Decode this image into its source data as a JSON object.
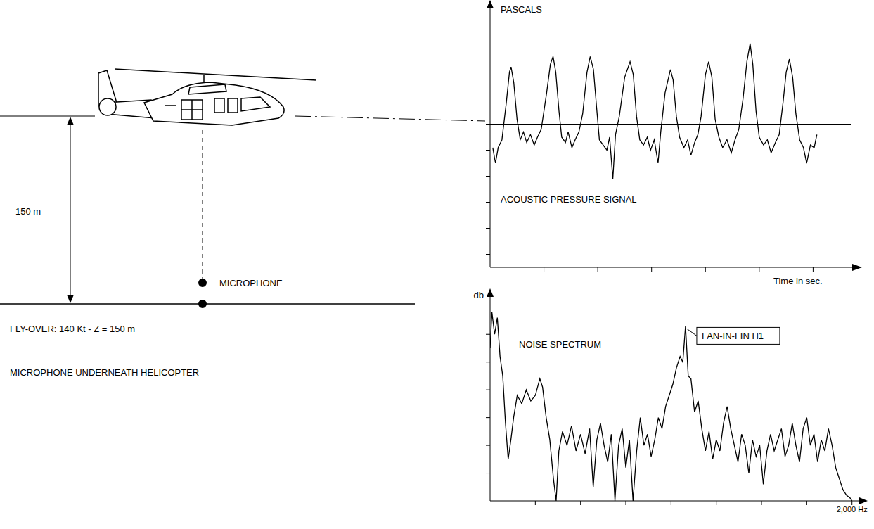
{
  "scene": {
    "altitude_label": "150 m",
    "microphone_label": "MICROPHONE",
    "caption_1": "FLY-OVER: 140 Kt - Z = 150 m",
    "caption_2": "MICROPHONE UNDERNEATH HELICOPTER"
  },
  "chart_data": [
    {
      "type": "line",
      "title": "ACOUSTIC PRESSURE SIGNAL",
      "y_label": "PASCALS",
      "x_label": "Time in sec.",
      "color": "#000000",
      "grid": false,
      "tick_labels": false,
      "xlim": [
        0,
        6.7
      ],
      "xticks": [
        1,
        2,
        3,
        4,
        5,
        6
      ],
      "ylim": [
        -5.5,
        4.5
      ],
      "yticks": [
        -5,
        -4,
        -3,
        -2,
        -1,
        0,
        1,
        2,
        3
      ],
      "x": [
        0.05,
        0.1,
        0.15,
        0.22,
        0.3,
        0.36,
        0.39,
        0.44,
        0.5,
        0.56,
        0.62,
        0.68,
        0.75,
        0.82,
        0.88,
        0.95,
        1.05,
        1.12,
        1.17,
        1.22,
        1.28,
        1.33,
        1.4,
        1.45,
        1.52,
        1.58,
        1.65,
        1.72,
        1.8,
        1.86,
        1.92,
        1.98,
        2.03,
        2.1,
        2.17,
        2.22,
        2.28,
        2.33,
        2.4,
        2.5,
        2.6,
        2.66,
        2.72,
        2.78,
        2.85,
        2.92,
        2.98,
        3.05,
        3.12,
        3.17,
        3.25,
        3.35,
        3.4,
        3.46,
        3.52,
        3.6,
        3.67,
        3.73,
        3.8,
        3.86,
        3.92,
        4.0,
        4.06,
        4.12,
        4.18,
        4.25,
        4.32,
        4.4,
        4.48,
        4.55,
        4.62,
        4.7,
        4.77,
        4.83,
        4.88,
        4.94,
        5.0,
        5.08,
        5.15,
        5.22,
        5.3,
        5.37,
        5.44,
        5.5,
        5.56,
        5.62,
        5.68,
        5.75,
        5.82,
        5.88,
        5.95,
        6.02,
        6.07
      ],
      "values": [
        -0.9,
        -1.5,
        -0.9,
        -0.6,
        0.8,
        2.0,
        2.2,
        1.6,
        0.2,
        -0.6,
        -0.3,
        -0.7,
        -0.4,
        -0.8,
        -0.5,
        -0.2,
        1.2,
        2.3,
        2.6,
        2.0,
        0.5,
        -0.5,
        -0.7,
        -0.3,
        -0.9,
        -0.6,
        -0.3,
        0.4,
        2.0,
        2.6,
        2.1,
        0.6,
        -0.6,
        -0.8,
        -1.0,
        -0.5,
        -2.1,
        -0.4,
        0.3,
        1.8,
        2.4,
        1.9,
        0.3,
        -0.6,
        -0.8,
        -0.5,
        -1.0,
        -0.6,
        -1.5,
        -0.3,
        1.2,
        2.1,
        1.7,
        0.3,
        -0.5,
        -0.9,
        -0.6,
        -1.2,
        -0.7,
        -0.4,
        0.3,
        1.9,
        2.4,
        1.8,
        0.2,
        -0.5,
        -0.9,
        -0.6,
        -1.1,
        -0.6,
        -0.2,
        1.0,
        2.4,
        3.1,
        2.3,
        0.5,
        -0.5,
        -0.8,
        -0.6,
        -1.1,
        -0.7,
        -0.4,
        0.8,
        2.0,
        2.5,
        1.8,
        0.4,
        -0.6,
        -0.9,
        -1.5,
        -0.8,
        -0.9,
        -0.4
      ]
    },
    {
      "type": "line",
      "title": "NOISE SPECTRUM",
      "y_label": "db",
      "color": "#000000",
      "grid": false,
      "tick_labels": "x",
      "xlim": [
        0,
        2040
      ],
      "xticks": [
        {
          "value": 250,
          "label": null
        },
        {
          "value": 500,
          "label": null
        },
        {
          "value": 750,
          "label": null
        },
        {
          "value": 1000,
          "label": null
        },
        {
          "value": 1250,
          "label": null
        },
        {
          "value": 1500,
          "label": null
        },
        {
          "value": 1750,
          "label": null
        },
        {
          "value": 2000,
          "label": "2,000 Hz"
        }
      ],
      "ylim": [
        0,
        74
      ],
      "yticks": [
        10,
        20,
        30,
        40,
        50,
        60
      ],
      "x": [
        0,
        10,
        25,
        40,
        55,
        70,
        85,
        100,
        115,
        130,
        150,
        175,
        200,
        225,
        250,
        275,
        290,
        310,
        330,
        350,
        365,
        380,
        400,
        425,
        450,
        475,
        500,
        525,
        550,
        570,
        590,
        610,
        630,
        650,
        670,
        690,
        710,
        730,
        750,
        770,
        790,
        810,
        830,
        850,
        870,
        890,
        910,
        930,
        950,
        970,
        990,
        1010,
        1030,
        1050,
        1065,
        1080,
        1095,
        1110,
        1130,
        1150,
        1170,
        1190,
        1210,
        1230,
        1250,
        1270,
        1290,
        1310,
        1330,
        1350,
        1370,
        1390,
        1410,
        1430,
        1450,
        1470,
        1490,
        1510,
        1530,
        1550,
        1570,
        1590,
        1610,
        1630,
        1650,
        1670,
        1690,
        1710,
        1730,
        1750,
        1770,
        1790,
        1810,
        1830,
        1850,
        1870,
        1890,
        1910,
        1930,
        1950,
        1970,
        1990,
        2000
      ],
      "values": [
        55,
        68,
        60,
        66,
        52,
        45,
        28,
        15,
        22,
        30,
        38,
        35,
        40,
        36,
        38,
        44,
        41,
        30,
        22,
        8,
        0,
        18,
        25,
        20,
        27,
        18,
        24,
        17,
        26,
        5,
        22,
        28,
        20,
        14,
        24,
        0,
        20,
        26,
        12,
        22,
        0,
        18,
        30,
        20,
        24,
        16,
        22,
        30,
        26,
        34,
        38,
        42,
        48,
        52,
        50,
        63,
        45,
        44,
        32,
        36,
        26,
        18,
        25,
        15,
        22,
        18,
        28,
        34,
        26,
        20,
        14,
        24,
        20,
        10,
        22,
        16,
        20,
        6,
        18,
        24,
        18,
        22,
        26,
        16,
        20,
        28,
        20,
        14,
        26,
        30,
        20,
        24,
        14,
        22,
        18,
        26,
        20,
        12,
        8,
        4,
        2,
        1,
        0
      ],
      "annotations": [
        {
          "text": "FAN-IN-FIN H1",
          "x": 1080,
          "y": 63
        }
      ]
    }
  ]
}
